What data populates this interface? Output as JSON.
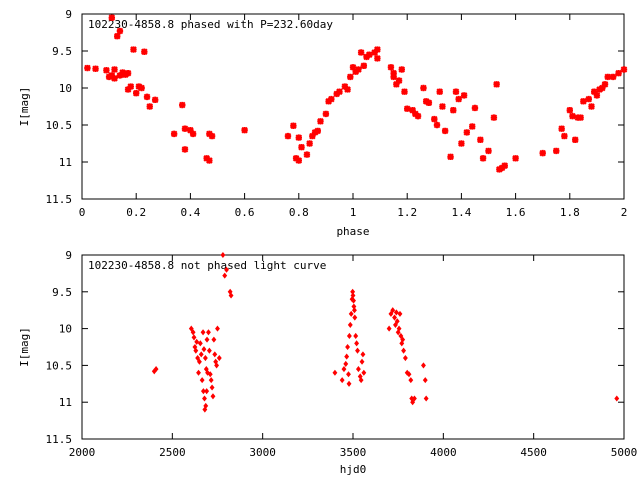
{
  "chart_data": [
    {
      "type": "scatter",
      "title": "102230-4858.8 phased with P=232.60day",
      "xlabel": "phase",
      "ylabel": "I[mag]",
      "xlim": [
        0,
        2
      ],
      "ylim": [
        9,
        11.5
      ],
      "y_inverted": true,
      "xticks": [
        0,
        0.2,
        0.4,
        0.6,
        0.8,
        1,
        1.2,
        1.4,
        1.6,
        1.8,
        2
      ],
      "xtick_labels": [
        "0",
        "0.2",
        "0.4",
        "0.6",
        "0.8",
        "1",
        "1.2",
        "1.4",
        "1.6",
        "1.8",
        "2"
      ],
      "yticks": [
        9,
        9.5,
        10,
        10.5,
        11,
        11.5
      ],
      "ytick_labels": [
        "9",
        "9.5",
        "10",
        "10.5",
        "11",
        "11.5"
      ],
      "grid": false,
      "marker": "plus-cross",
      "color": "#ff0000",
      "series": [
        {
          "x": [
            0.02,
            0.05,
            0.09,
            0.1,
            0.11,
            0.11,
            0.12,
            0.12,
            0.13,
            0.14,
            0.14,
            0.15,
            0.16,
            0.17,
            0.17,
            0.18,
            0.19,
            0.2,
            0.21,
            0.22,
            0.23,
            0.24,
            0.25,
            0.27,
            0.34,
            0.37,
            0.38,
            0.38,
            0.4,
            0.41,
            0.46,
            0.47,
            0.47,
            0.48,
            0.6,
            0.76,
            0.78,
            0.79,
            0.8,
            0.8,
            0.81,
            0.83,
            0.84,
            0.85,
            0.86,
            0.87,
            0.88,
            0.9,
            0.91,
            0.92,
            0.94,
            0.95,
            0.97,
            0.98,
            0.99,
            1.0,
            1.01,
            1.02,
            1.03,
            1.04,
            1.05,
            1.06,
            1.08,
            1.09,
            1.09,
            1.14,
            1.15,
            1.15,
            1.16,
            1.17,
            1.18,
            1.19,
            1.2,
            1.22,
            1.23,
            1.24,
            1.26,
            1.27,
            1.28,
            1.3,
            1.31,
            1.32,
            1.33,
            1.34,
            1.36,
            1.37,
            1.38,
            1.39,
            1.4,
            1.41,
            1.42,
            1.44,
            1.45,
            1.47,
            1.48,
            1.5,
            1.52,
            1.53,
            1.54,
            1.55,
            1.56,
            1.6,
            1.7,
            1.75,
            1.77,
            1.78,
            1.8,
            1.81,
            1.82,
            1.83,
            1.84,
            1.85,
            1.87,
            1.88,
            1.89,
            1.9,
            1.91,
            1.92,
            1.93,
            1.94,
            1.96,
            1.98,
            2.0
          ],
          "y": [
            9.73,
            9.74,
            9.76,
            9.85,
            9.83,
            9.05,
            9.75,
            9.87,
            9.3,
            9.83,
            9.23,
            9.79,
            9.82,
            10.02,
            9.8,
            9.98,
            9.48,
            10.07,
            9.98,
            10.0,
            9.51,
            10.12,
            10.25,
            10.16,
            10.62,
            10.23,
            10.83,
            10.55,
            10.57,
            10.62,
            10.95,
            10.62,
            10.98,
            10.65,
            10.57,
            10.65,
            10.51,
            10.95,
            10.67,
            10.98,
            10.8,
            10.9,
            10.75,
            10.65,
            10.6,
            10.58,
            10.45,
            10.35,
            10.18,
            10.15,
            10.08,
            10.05,
            9.98,
            10.02,
            9.85,
            9.72,
            9.78,
            9.75,
            9.52,
            9.7,
            9.58,
            9.55,
            9.52,
            9.48,
            9.6,
            9.72,
            9.8,
            9.85,
            9.95,
            9.9,
            9.75,
            10.05,
            10.28,
            10.3,
            10.35,
            10.38,
            10.0,
            10.18,
            10.2,
            10.42,
            10.5,
            10.05,
            10.25,
            10.58,
            10.93,
            10.3,
            10.05,
            10.15,
            10.75,
            10.1,
            10.6,
            10.52,
            10.27,
            10.7,
            10.95,
            10.85,
            10.4,
            9.95,
            11.1,
            11.08,
            11.05,
            10.95,
            10.88,
            10.85,
            10.55,
            10.65,
            10.3,
            10.38,
            10.7,
            10.4,
            10.4,
            10.18,
            10.15,
            10.25,
            10.05,
            10.1,
            10.02,
            10.0,
            9.95,
            9.85,
            9.85,
            9.8,
            9.75
          ]
        }
      ]
    },
    {
      "type": "scatter",
      "title": "102230-4858.8 not phased light curve",
      "xlabel": "hjd0",
      "ylabel": "I[mag]",
      "xlim": [
        2000,
        5000
      ],
      "ylim": [
        9,
        11.5
      ],
      "y_inverted": true,
      "xticks": [
        2000,
        2500,
        3000,
        3500,
        4000,
        4500,
        5000
      ],
      "xtick_labels": [
        "2000",
        "2500",
        "3000",
        "3500",
        "4000",
        "4500",
        "5000"
      ],
      "yticks": [
        9,
        9.5,
        10,
        10.5,
        11,
        11.5
      ],
      "ytick_labels": [
        "9",
        "9.5",
        "10",
        "10.5",
        "11",
        "11.5"
      ],
      "grid": false,
      "marker": "diamond",
      "color": "#ff0000",
      "series": [
        {
          "x": [
            2400,
            2410,
            2605,
            2615,
            2620,
            2625,
            2630,
            2635,
            2640,
            2645,
            2650,
            2655,
            2660,
            2665,
            2670,
            2672,
            2675,
            2678,
            2680,
            2683,
            2685,
            2688,
            2690,
            2692,
            2695,
            2700,
            2705,
            2710,
            2715,
            2720,
            2725,
            2730,
            2735,
            2740,
            2745,
            2750,
            2760,
            2780,
            2790,
            2800,
            2820,
            2825,
            3400,
            3440,
            3450,
            3460,
            3465,
            3470,
            3475,
            3478,
            3480,
            3485,
            3490,
            3495,
            3498,
            3500,
            3503,
            3505,
            3508,
            3510,
            3515,
            3520,
            3525,
            3530,
            3540,
            3545,
            3550,
            3555,
            3560,
            3700,
            3710,
            3720,
            3730,
            3735,
            3740,
            3745,
            3750,
            3755,
            3760,
            3765,
            3770,
            3775,
            3780,
            3790,
            3800,
            3810,
            3820,
            3825,
            3830,
            3840,
            3890,
            3900,
            3905,
            4960
          ],
          "y": [
            10.58,
            10.55,
            10.0,
            10.05,
            10.12,
            10.25,
            10.3,
            10.18,
            10.4,
            10.6,
            10.45,
            10.2,
            10.35,
            10.7,
            10.05,
            10.85,
            10.28,
            10.95,
            11.1,
            10.4,
            11.05,
            10.55,
            10.85,
            10.15,
            10.6,
            10.05,
            10.3,
            10.62,
            10.7,
            10.8,
            10.92,
            10.15,
            10.35,
            10.45,
            10.5,
            10.0,
            10.4,
            9.0,
            9.28,
            9.2,
            9.5,
            9.55,
            10.6,
            10.7,
            10.55,
            10.48,
            10.38,
            10.25,
            10.62,
            10.75,
            10.1,
            9.95,
            9.8,
            9.6,
            9.5,
            9.55,
            9.62,
            9.7,
            9.75,
            9.85,
            10.1,
            10.2,
            10.3,
            10.55,
            10.65,
            10.7,
            10.45,
            10.35,
            10.6,
            10.0,
            9.8,
            9.75,
            9.85,
            9.95,
            9.78,
            9.9,
            10.05,
            10.0,
            9.8,
            10.1,
            10.2,
            10.15,
            10.3,
            10.4,
            10.6,
            10.62,
            10.7,
            10.95,
            11.0,
            10.95,
            10.5,
            10.7,
            10.95,
            10.95
          ]
        }
      ]
    }
  ]
}
